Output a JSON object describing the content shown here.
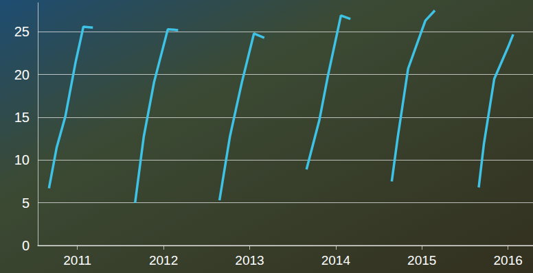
{
  "chart_data": {
    "type": "line",
    "color": "#3ec3e6",
    "grid": true,
    "xlim": [
      2010.54,
      2016.29
    ],
    "xticks": [
      2011,
      2012,
      2013,
      2014,
      2015,
      2016
    ],
    "ylim": [
      0,
      28.4
    ],
    "yticks": [
      0,
      5,
      10,
      15,
      20,
      25
    ],
    "series": [
      {
        "x": [
          2010.67,
          2010.76,
          2010.86,
          2010.98,
          2011.07,
          2011.18
        ],
        "values": [
          6.7,
          11.5,
          15.1,
          21.5,
          25.6,
          25.5
        ]
      },
      {
        "x": [
          2011.67,
          2011.77,
          2011.89,
          2012.05,
          2012.17
        ],
        "values": [
          5.0,
          12.7,
          19.1,
          25.3,
          25.2
        ]
      },
      {
        "x": [
          2012.65,
          2012.77,
          2012.91,
          2013.05,
          2013.17
        ],
        "values": [
          5.3,
          12.7,
          19.1,
          24.8,
          24.3
        ]
      },
      {
        "x": [
          2013.66,
          2013.81,
          2013.91,
          2014.06,
          2014.17
        ],
        "values": [
          8.9,
          14.7,
          19.9,
          26.9,
          26.5
        ]
      },
      {
        "x": [
          2014.65,
          2014.72,
          2014.84,
          2015.04,
          2015.15
        ],
        "values": [
          7.5,
          12.7,
          20.7,
          26.3,
          27.5
        ]
      },
      {
        "x": [
          2015.66,
          2015.72,
          2015.84,
          2016.0,
          2016.06
        ],
        "values": [
          6.8,
          11.9,
          19.5,
          23.2,
          24.7
        ]
      }
    ]
  }
}
